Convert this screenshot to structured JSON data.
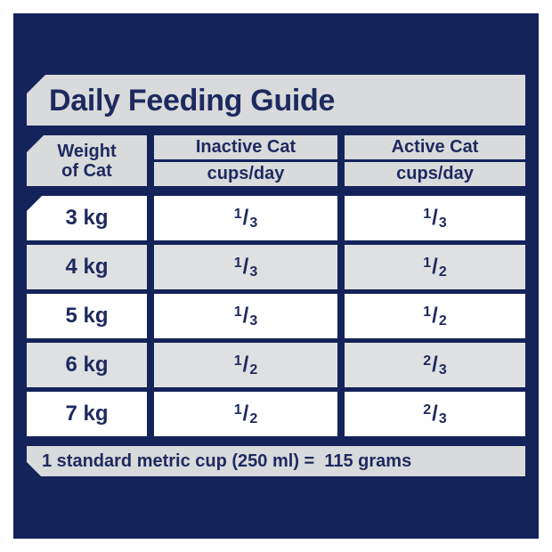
{
  "title": "Daily Feeding Guide",
  "table": {
    "weight_header": {
      "line1": "Weight",
      "line2": "of Cat"
    },
    "columns": [
      {
        "title": "Inactive Cat",
        "unit": "cups/day"
      },
      {
        "title": "Active Cat",
        "unit": "cups/day"
      }
    ],
    "rows": [
      {
        "weight": "3 kg",
        "inactive": "1/3",
        "active": "1/3"
      },
      {
        "weight": "4 kg",
        "inactive": "1/3",
        "active": "1/2"
      },
      {
        "weight": "5 kg",
        "inactive": "1/3",
        "active": "1/2"
      },
      {
        "weight": "6 kg",
        "inactive": "1/2",
        "active": "2/3"
      },
      {
        "weight": "7 kg",
        "inactive": "1/2",
        "active": "2/3"
      }
    ]
  },
  "footnote": "1 standard metric cup (250 ml) =  115 grams",
  "colors": {
    "panel_navy": "#14235A",
    "text_navy": "#1D2A5F",
    "bar_gray": "#D8DADB",
    "row_alt_gray": "#DFE0E2",
    "row_white": "#FFFFFF",
    "page_bg": "#FFFFFF"
  },
  "chart_data": {
    "type": "table",
    "title": "Daily Feeding Guide",
    "columns": [
      "Weight of Cat",
      "Inactive Cat cups/day",
      "Active Cat cups/day"
    ],
    "rows": [
      [
        "3 kg",
        "1/3",
        "1/3"
      ],
      [
        "4 kg",
        "1/3",
        "1/2"
      ],
      [
        "5 kg",
        "1/3",
        "1/2"
      ],
      [
        "6 kg",
        "1/2",
        "2/3"
      ],
      [
        "7 kg",
        "1/2",
        "2/3"
      ]
    ],
    "footnote": "1 standard metric cup (250 ml) = 115 grams"
  }
}
